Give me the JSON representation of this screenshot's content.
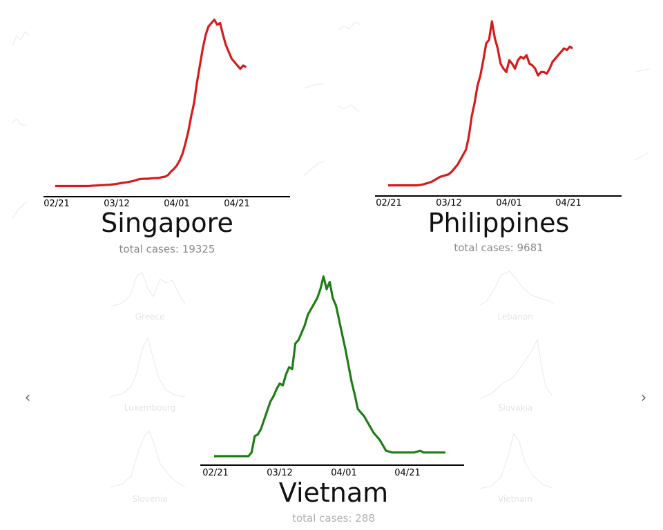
{
  "navigation": {
    "prev_icon": "chevron-left-icon",
    "next_icon": "chevron-right-icon",
    "prev_glyph": "‹",
    "next_glyph": "›"
  },
  "background_thumbnails": [
    "Greece",
    "Lebanon",
    "Luxembourg",
    "Slovakia",
    "Slovenia",
    "Vietnam"
  ],
  "chart_data": [
    {
      "type": "line",
      "country": "Singapore",
      "total_label": "total cases: 19325",
      "color": "#d71a1a",
      "xticks": [
        "02/21",
        "03/12",
        "04/01",
        "04/21"
      ],
      "x_range": [
        0,
        80
      ],
      "ylim": [
        0,
        1
      ],
      "values": [
        0.01,
        0.01,
        0.01,
        0.01,
        0.01,
        0.01,
        0.01,
        0.01,
        0.01,
        0.01,
        0.01,
        0.01,
        0.011,
        0.012,
        0.013,
        0.014,
        0.015,
        0.016,
        0.017,
        0.018,
        0.02,
        0.022,
        0.025,
        0.028,
        0.03,
        0.033,
        0.036,
        0.04,
        0.045,
        0.05,
        0.052,
        0.053,
        0.053,
        0.055,
        0.056,
        0.057,
        0.058,
        0.062,
        0.065,
        0.075,
        0.095,
        0.11,
        0.13,
        0.16,
        0.2,
        0.26,
        0.33,
        0.42,
        0.5,
        0.62,
        0.72,
        0.82,
        0.9,
        0.95,
        0.97,
        0.99,
        0.96,
        0.97,
        0.9,
        0.84,
        0.8,
        0.76,
        0.74,
        0.72,
        0.7,
        0.72,
        0.71
      ]
    },
    {
      "type": "line",
      "country": "Philippines",
      "total_label": "total cases: 9681",
      "color": "#d71a1a",
      "xticks": [
        "02/21",
        "03/12",
        "04/01",
        "04/21"
      ],
      "x_range": [
        0,
        80
      ],
      "ylim": [
        0,
        1
      ],
      "values": [
        0.01,
        0.01,
        0.01,
        0.01,
        0.01,
        0.01,
        0.01,
        0.01,
        0.01,
        0.01,
        0.01,
        0.012,
        0.015,
        0.02,
        0.025,
        0.03,
        0.04,
        0.05,
        0.06,
        0.065,
        0.07,
        0.075,
        0.09,
        0.11,
        0.13,
        0.16,
        0.19,
        0.22,
        0.3,
        0.42,
        0.5,
        0.6,
        0.66,
        0.75,
        0.85,
        0.87,
        0.98,
        0.88,
        0.82,
        0.73,
        0.7,
        0.68,
        0.75,
        0.73,
        0.7,
        0.75,
        0.77,
        0.76,
        0.78,
        0.73,
        0.72,
        0.7,
        0.66,
        0.68,
        0.68,
        0.67,
        0.7,
        0.74,
        0.76,
        0.78,
        0.8,
        0.82,
        0.81,
        0.83,
        0.82
      ]
    },
    {
      "type": "line",
      "country": "Vietnam",
      "total_label": "total cases: 288",
      "color": "#1e7d16",
      "xticks": [
        "02/21",
        "03/12",
        "04/01",
        "04/21"
      ],
      "x_range": [
        0,
        80
      ],
      "ylim": [
        0,
        1
      ],
      "values": [
        0.0,
        0.0,
        0.0,
        0.0,
        0.0,
        0.0,
        0.0,
        0.0,
        0.0,
        0.0,
        0.0,
        0.0,
        0.02,
        0.11,
        0.12,
        0.15,
        0.2,
        0.25,
        0.3,
        0.33,
        0.37,
        0.4,
        0.39,
        0.45,
        0.49,
        0.48,
        0.62,
        0.64,
        0.68,
        0.72,
        0.78,
        0.81,
        0.84,
        0.87,
        0.92,
        0.99,
        0.92,
        0.96,
        0.87,
        0.83,
        0.75,
        0.67,
        0.59,
        0.5,
        0.41,
        0.34,
        0.26,
        0.24,
        0.22,
        0.19,
        0.16,
        0.13,
        0.11,
        0.09,
        0.06,
        0.03,
        0.025,
        0.02,
        0.02,
        0.02,
        0.02,
        0.02,
        0.02,
        0.02,
        0.02,
        0.025,
        0.03,
        0.02,
        0.02,
        0.02,
        0.02,
        0.02,
        0.02,
        0.02,
        0.02
      ]
    }
  ]
}
